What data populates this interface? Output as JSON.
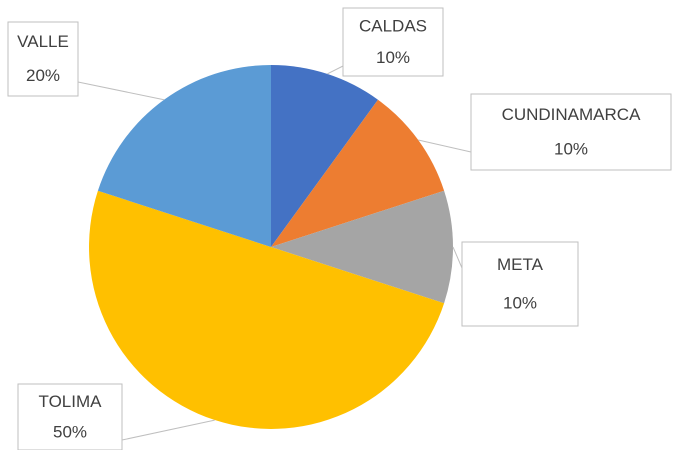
{
  "chart_data": {
    "type": "pie",
    "categories": [
      "CALDAS",
      "CUNDINAMARCA",
      "META",
      "TOLIMA",
      "VALLE"
    ],
    "values": [
      10,
      10,
      10,
      50,
      20
    ],
    "value_labels": [
      "10%",
      "10%",
      "10%",
      "50%",
      "20%"
    ],
    "colors": [
      "#4472c4",
      "#ed7d31",
      "#a5a5a5",
      "#ffc000",
      "#5b9bd5"
    ]
  }
}
